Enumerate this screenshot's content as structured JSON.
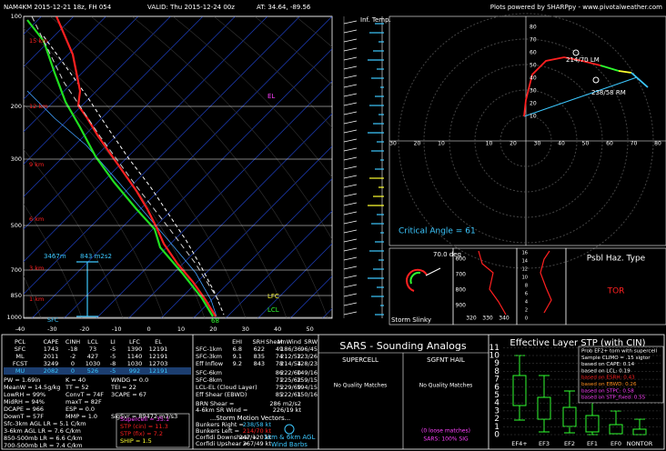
{
  "header": {
    "title": "NAM4KM 2015-12-21 18z, FH 054",
    "valid": "VALID: Thu 2015-12-24 00z",
    "location": "AT: 34.64, -89.56",
    "credit": "Plots powered by SHARPpy - www.pivotalweather.com"
  },
  "skewt": {
    "pressures": [
      "100",
      "200",
      "300",
      "500",
      "700",
      "850",
      "1000"
    ],
    "temps": [
      "-40",
      "-30",
      "-20",
      "-10",
      "0",
      "10",
      "20",
      "30",
      "40",
      "50"
    ],
    "heights": [
      "15 km",
      "12 km",
      "9 km",
      "6 km",
      "3 km",
      "1 km",
      "SFC"
    ],
    "eff_inflow_top": "3467m",
    "eff_srh": "843 m2s2",
    "lfc": "LFC",
    "lcl": "LCL",
    "el": "EL",
    "sfc_temp": "68",
    "inflow_label": "Inf. Temp."
  },
  "hodograph": {
    "xlabels": [
      "30",
      "20",
      "10",
      "10",
      "20",
      "30",
      "40",
      "50",
      "60",
      "70",
      "80"
    ],
    "ylabels": [
      "80",
      "70",
      "60",
      "50",
      "40",
      "30",
      "20",
      "10"
    ],
    "left_mover": "214/70 LM",
    "right_mover": "238/58 RM",
    "critical_angle": "Critical Angle = 61"
  },
  "insets": {
    "slinky_angle": "70.0 deg",
    "slinky_title": "Storm Slinky",
    "thetae_pressures": [
      "600",
      "700",
      "800",
      "900"
    ],
    "thetae_temps": [
      "320",
      "330",
      "340"
    ],
    "srwind_heights": [
      "16",
      "14",
      "12",
      "10",
      "8",
      "6",
      "4",
      "2",
      "0"
    ],
    "hazard_title": "Psbl Haz. Type",
    "hazard": "TOR"
  },
  "thermo": {
    "header": [
      "PCL",
      "CAPE",
      "CINH",
      "LCL",
      "LI",
      "LFC",
      "EL"
    ],
    "rows": [
      [
        "SFC",
        "1743",
        "-18",
        "73",
        "-5",
        "1390",
        "12191"
      ],
      [
        "ML",
        "2011",
        "-2",
        "427",
        "-5",
        "1140",
        "12191"
      ],
      [
        "FCST",
        "3249",
        "0",
        "1030",
        "-8",
        "1030",
        "12703"
      ],
      [
        "MU",
        "2082",
        "0",
        "526",
        "-5",
        "992",
        "12191"
      ]
    ],
    "indices": [
      [
        "PW = 1.69in",
        "K = 40",
        "WNDG = 0.0"
      ],
      [
        "MeanW = 14.5g/kg",
        "TT = 52",
        "TEI = 22"
      ],
      [
        "LowRH = 99%",
        "ConvT = 74F",
        "3CAPE = 67"
      ],
      [
        "MidRH = 94%",
        "maxT = 82F",
        ""
      ],
      [
        "DCAPE = 966",
        "ESP = 0.0",
        ""
      ],
      [
        "DownT = 57F",
        "MMP = 1.0",
        "SigSvr = 89472 m3/s3"
      ]
    ],
    "lapse_rates": [
      "Sfc-3km AGL LR = 5.1 C/km",
      "3-6km AGL LR = 7.6 C/km",
      "850-500mb LR = 6.6 C/km",
      "700-500mb LR = 7.4 C/km"
    ],
    "composites": [
      "Supercell = 35.1",
      "STP (cin) = 11.3",
      "STP (fix) = 7.2",
      "SHIP = 1.5"
    ]
  },
  "kinematics": {
    "header": [
      "EHI",
      "SRH",
      "Shear",
      "MnWind",
      "SRW"
    ],
    "rows": [
      [
        "SFC-1km",
        "6.8",
        "622",
        "49",
        "186/36",
        "96/45"
      ],
      [
        "SFC-3km",
        "9.1",
        "835",
        "74",
        "212/52",
        "123/26"
      ],
      [
        "Eff Inflow",
        "9.2",
        "843",
        "78",
        "214/54",
        "128/23"
      ],
      [
        "SFC-6km",
        "",
        "",
        "86",
        "222/60",
        "149/16"
      ],
      [
        "SFC-8km",
        "",
        "",
        "71",
        "225/62",
        "159/15"
      ],
      [
        "LCL-EL (Cloud Layer)",
        "",
        "",
        "75",
        "229/69",
        "194/15"
      ],
      [
        "Eff Shear (EBWD)",
        "",
        "",
        "85",
        "222/61",
        "150/16"
      ]
    ],
    "extras": [
      [
        "BRN Shear =",
        "286 m2/s2"
      ],
      [
        "4-6km SR Wind =",
        "226/19 kt"
      ]
    ],
    "motion_title": "...Storm Motion Vectors...",
    "motions": [
      [
        "Bunkers Right =",
        "238/58 kt"
      ],
      [
        "Bunkers Left =",
        "214/70 kt"
      ],
      [
        "Corfidi Downshear =",
        "247/120 kt"
      ],
      [
        "Corfidi Upshear =",
        "267/49 kt"
      ]
    ],
    "barb_note": [
      "1km & 6km AGL",
      "Wind Barbs"
    ]
  },
  "sars": {
    "title": "SARS - Sounding Analogs",
    "supercell": "SUPERCELL",
    "hail": "SGFNT HAIL",
    "supercell_matches": "No Quality Matches",
    "hail_matches": "No Quality Matches",
    "loose": "(0 loose matches)",
    "sig": "SARS: 100% SIG"
  },
  "stp": {
    "title": "Effective Layer STP (with CIN)",
    "yticks": [
      "0",
      "1",
      "2",
      "3",
      "4",
      "5",
      "6",
      "7",
      "8",
      "9",
      "10",
      "11"
    ],
    "categories": [
      "EF4+",
      "EF3",
      "EF2",
      "EF1",
      "EF0",
      "NONTOR"
    ],
    "legend": [
      "Prob EF2+ torn with supercell",
      "Sample CLIMO = .15 sigtor",
      "based on CAPE: 0.14",
      "based on LCL: 0.19",
      "based on ESRH: 0.43",
      "based on EBWD: 0.26",
      "based on STPC: 0.58",
      "based on STP_fixed: 0.55"
    ]
  }
}
